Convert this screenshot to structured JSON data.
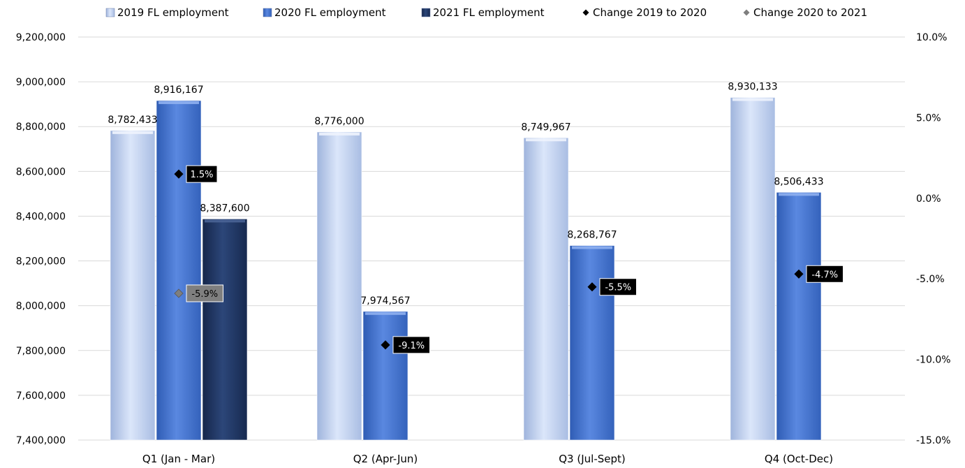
{
  "chart_data": {
    "type": "bar",
    "categories": [
      "Q1 (Jan - Mar)",
      "Q2 (Apr-Jun)",
      "Q3 (Jul-Sept)",
      "Q4 (Oct-Dec)"
    ],
    "series": [
      {
        "name": "2019 FL employment",
        "values": [
          8782433,
          8776000,
          8749967,
          8930133
        ],
        "value_labels": [
          "8,782,433",
          "8,776,000",
          "8,749,967",
          "8,930,133"
        ],
        "color": "#c5d5f2"
      },
      {
        "name": "2020 FL employment",
        "values": [
          8916167,
          7974567,
          8268767,
          8506433
        ],
        "value_labels": [
          "8,916,167",
          "7,974,567",
          "8,268,767",
          "8,506,433"
        ],
        "color": "#4a78d2"
      },
      {
        "name": "2021 FL employment",
        "values": [
          8387600,
          null,
          null,
          null
        ],
        "value_labels": [
          "8,387,600",
          "",
          "",
          ""
        ],
        "color": "#1f3564"
      }
    ],
    "change_series": [
      {
        "name": "Change 2019 to 2020",
        "values": [
          1.5,
          -9.1,
          -5.5,
          -4.7
        ],
        "labels": [
          "1.5%",
          "-9.1%",
          "-5.5%",
          "-4.7%"
        ],
        "marker_color": "#000000",
        "label_bg": "#000000",
        "label_color": "#ffffff"
      },
      {
        "name": "Change 2020 to 2021",
        "values": [
          -5.9,
          null,
          null,
          null
        ],
        "labels": [
          "-5.9%",
          "",
          "",
          ""
        ],
        "marker_color": "#7f7f7f",
        "label_bg": "#7f7f7f",
        "label_color": "#000000"
      }
    ],
    "y_left": {
      "min": 7400000,
      "max": 9200000,
      "step": 200000,
      "tick_labels": [
        "7,400,000",
        "7,600,000",
        "7,800,000",
        "8,000,000",
        "8,200,000",
        "8,400,000",
        "8,600,000",
        "8,800,000",
        "9,000,000",
        "9,200,000"
      ]
    },
    "y_right": {
      "min": -15,
      "max": 10,
      "step": 5,
      "tick_labels": [
        "-15.0%",
        "-10.0%",
        "-5.0%",
        "0.0%",
        "5.0%",
        "10.0%"
      ]
    },
    "grid": true,
    "legend_position": "top"
  }
}
